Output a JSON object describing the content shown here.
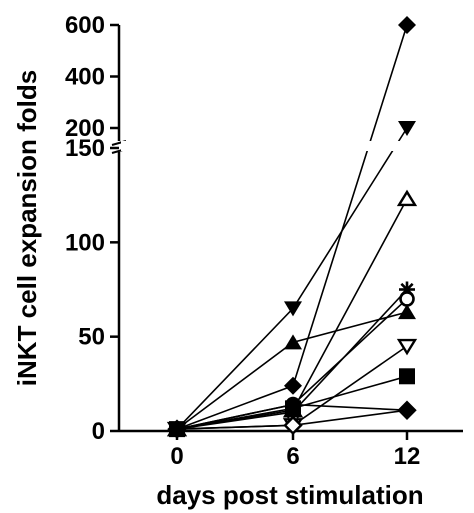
{
  "chart_data": {
    "type": "line",
    "xlabel": "days post stimulation",
    "ylabel": "iNKT cell expansion folds",
    "x": [
      0,
      6,
      12
    ],
    "x_tick_labels": [
      "0",
      "6",
      "12"
    ],
    "y_axis": {
      "broken": true,
      "lower_segment": {
        "range": [
          0,
          150
        ],
        "ticks": [
          0,
          50,
          100,
          150
        ]
      },
      "upper_segment": {
        "range": [
          200,
          600
        ],
        "ticks": [
          200,
          400,
          600
        ]
      }
    },
    "grid": false,
    "legend": "none",
    "series": [
      {
        "marker": "diamond-filled",
        "values": [
          1,
          24,
          600
        ]
      },
      {
        "marker": "triangle-down-filled",
        "values": [
          1,
          65,
          200
        ]
      },
      {
        "marker": "triangle-up-open",
        "values": [
          1,
          11,
          123
        ]
      },
      {
        "marker": "asterisk",
        "values": [
          1,
          10,
          75
        ]
      },
      {
        "marker": "circle-open",
        "values": [
          1,
          14,
          70
        ]
      },
      {
        "marker": "triangle-up-filled",
        "values": [
          1,
          47,
          63
        ]
      },
      {
        "marker": "triangle-down-open",
        "values": [
          1,
          3,
          45
        ]
      },
      {
        "marker": "square-filled",
        "values": [
          1,
          12,
          29
        ]
      },
      {
        "marker": "diamond-open",
        "values": [
          1,
          3,
          11
        ]
      },
      {
        "marker": "diamond-filled-small",
        "values": [
          1,
          14,
          11
        ]
      }
    ],
    "colors": {
      "ink": "#000000",
      "background": "#ffffff"
    }
  }
}
